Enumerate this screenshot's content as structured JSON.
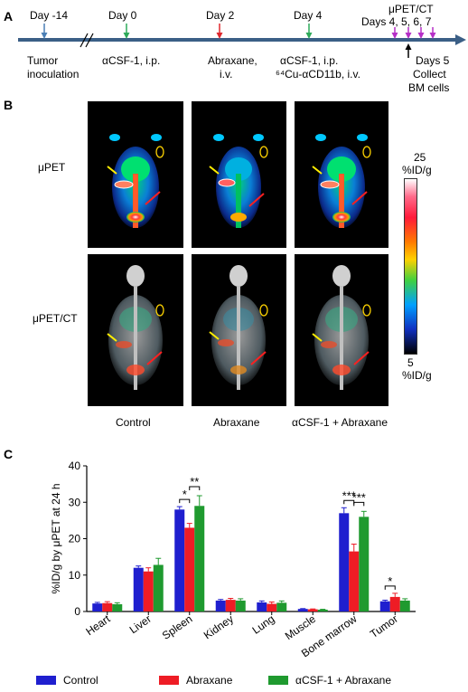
{
  "panel_a": {
    "letter": "A",
    "events": [
      {
        "day": "Day -14",
        "desc": [
          "Tumor",
          "inoculation"
        ],
        "color": "#4a7fb5"
      },
      {
        "day": "Day 0",
        "desc": [
          "αCSF-1, i.p."
        ],
        "color": "#2eaa5a"
      },
      {
        "day": "Day 2",
        "desc": [
          "Abraxane,",
          "i.v."
        ],
        "color": "#e0282e"
      },
      {
        "day": "Day 4",
        "desc": [
          "αCSF-1, i.p.",
          "⁶⁴Cu-αCD11b, i.v."
        ],
        "color": "#2eaa5a"
      }
    ],
    "imaging_label": [
      "μPET/CT",
      "Days 4, 5, 6, 7"
    ],
    "collect_label": [
      "Days 5",
      "Collect",
      "BM cells"
    ],
    "imaging_color": "#b52fc7"
  },
  "panel_b": {
    "letter": "B",
    "row_labels": [
      "μPET",
      "μPET/CT"
    ],
    "column_labels": [
      "Control",
      "Abraxane",
      "αCSF-1 + Abraxane"
    ],
    "colorbar_max": [
      "25",
      "%ID/g"
    ],
    "colorbar_min": [
      "5",
      "%ID/g"
    ]
  },
  "chart_data": {
    "type": "bar",
    "title": "",
    "panel_letter": "C",
    "ylabel": "%ID/g by μPET at 24 h",
    "ylim": [
      0,
      40
    ],
    "yticks": [
      0,
      10,
      20,
      30,
      40
    ],
    "categories": [
      "Heart",
      "Liver",
      "Spleen",
      "Kidney",
      "Lung",
      "Muscle",
      "Bone marrow",
      "Tumor"
    ],
    "series": [
      {
        "name": "Control",
        "color": "#1f1fcf",
        "values": [
          2.2,
          12.0,
          28.0,
          3.0,
          2.5,
          0.7,
          27.0,
          2.8
        ],
        "errors": [
          0.3,
          0.5,
          0.8,
          0.3,
          0.4,
          0.1,
          1.5,
          0.3
        ]
      },
      {
        "name": "Abraxane",
        "color": "#ee1c25",
        "values": [
          2.3,
          11.0,
          23.0,
          3.2,
          2.1,
          0.6,
          16.5,
          4.0
        ],
        "errors": [
          0.4,
          1.0,
          1.2,
          0.4,
          0.5,
          0.1,
          2.0,
          1.0
        ]
      },
      {
        "name": "αCSF-1 + Abraxane",
        "color": "#1f9a2f",
        "values": [
          2.0,
          12.8,
          29.0,
          3.0,
          2.4,
          0.5,
          26.0,
          3.0
        ],
        "errors": [
          0.4,
          1.8,
          2.8,
          0.5,
          0.5,
          0.1,
          1.5,
          0.5
        ]
      }
    ],
    "significance": [
      {
        "category": "Spleen",
        "from": 0,
        "to": 1,
        "label": "*"
      },
      {
        "category": "Spleen",
        "from": 1,
        "to": 2,
        "label": "**"
      },
      {
        "category": "Bone marrow",
        "from": 0,
        "to": 1,
        "label": "***"
      },
      {
        "category": "Bone marrow",
        "from": 1,
        "to": 2,
        "label": "***"
      },
      {
        "category": "Tumor",
        "from": 0,
        "to": 1,
        "label": "*"
      }
    ],
    "legend_position": "bottom",
    "grid": false
  }
}
